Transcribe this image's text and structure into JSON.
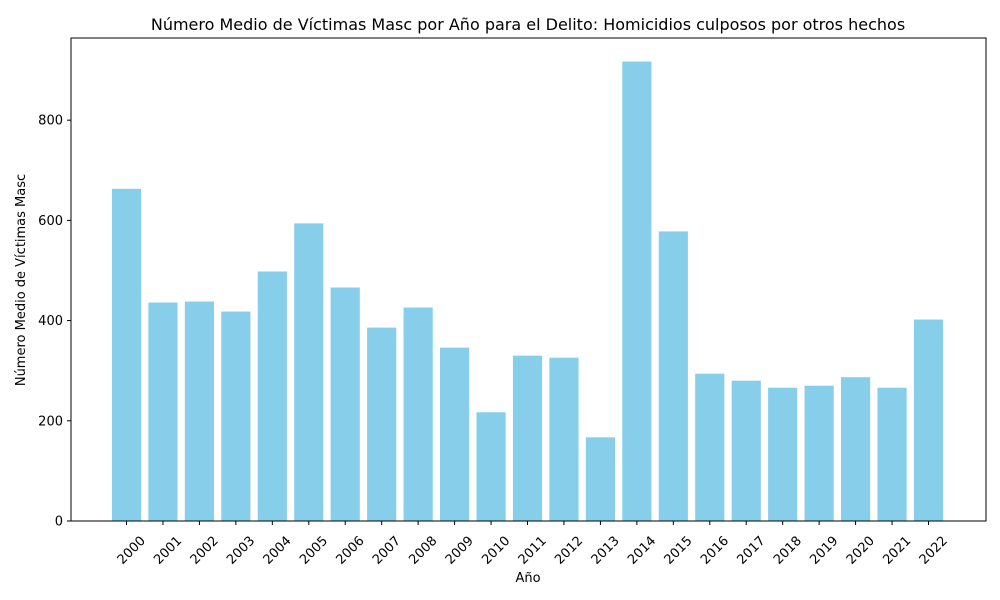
{
  "chart_data": {
    "type": "bar",
    "title": "Número Medio de Víctimas Masc por Año para el Delito: Homicidios culposos por otros hechos",
    "xlabel": "Año",
    "ylabel": "Número Medio de Víctimas Masc",
    "categories": [
      "2000",
      "2001",
      "2002",
      "2003",
      "2004",
      "2005",
      "2006",
      "2007",
      "2008",
      "2009",
      "2010",
      "2011",
      "2012",
      "2013",
      "2014",
      "2015",
      "2016",
      "2017",
      "2018",
      "2019",
      "2020",
      "2021",
      "2022"
    ],
    "values": [
      663,
      436,
      438,
      418,
      498,
      594,
      466,
      386,
      426,
      346,
      217,
      330,
      326,
      167,
      917,
      578,
      294,
      280,
      266,
      270,
      287,
      266,
      402
    ],
    "ylim": [
      0,
      964
    ],
    "yticks": [
      0,
      200,
      400,
      600,
      800
    ],
    "bar_color": "#87ceeb",
    "grid": false,
    "legend": "none"
  }
}
